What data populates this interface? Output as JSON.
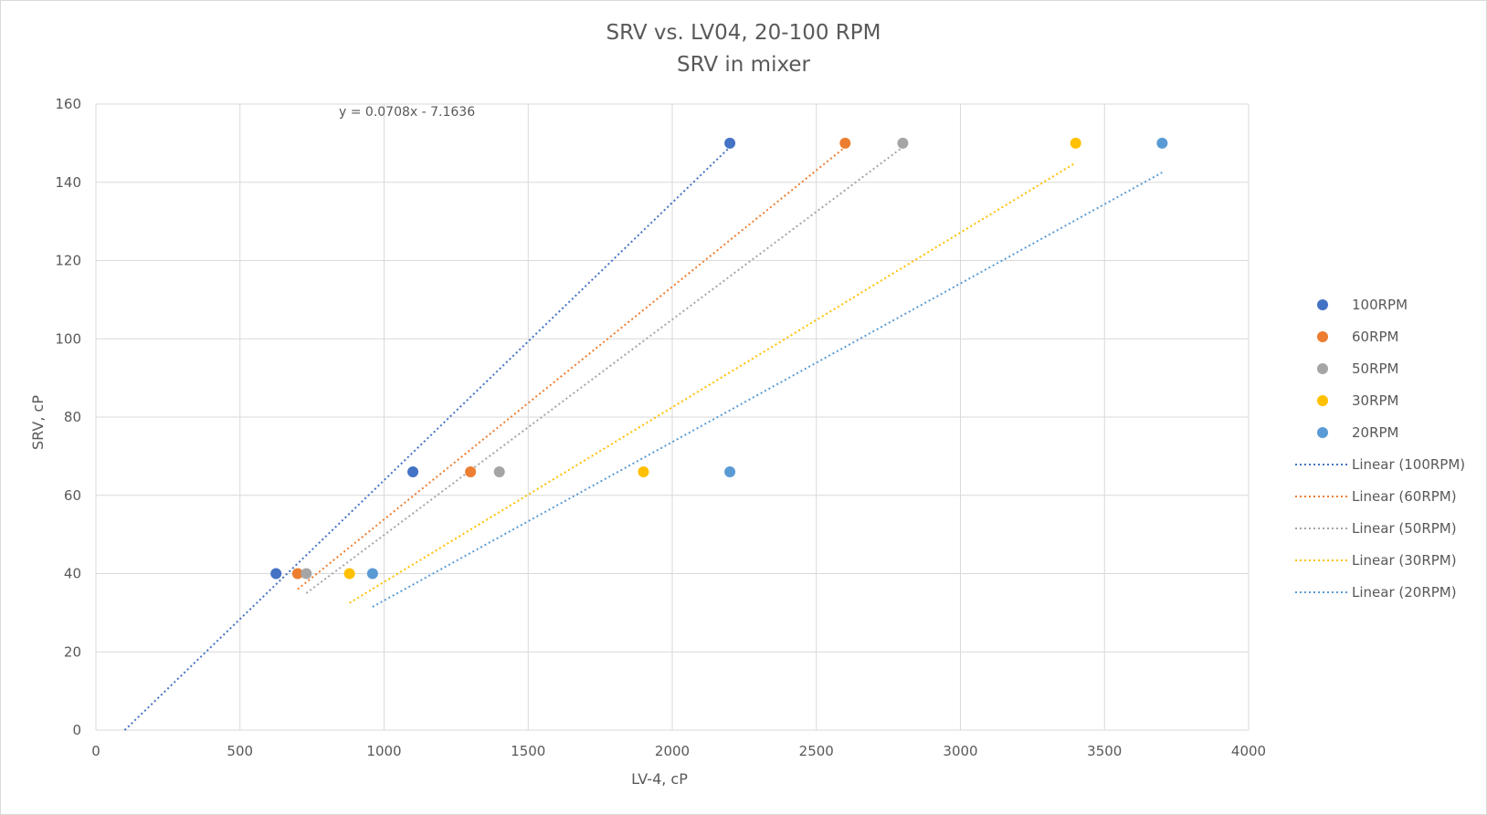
{
  "chart_data": {
    "type": "scatter",
    "title": "SRV vs. LV04, 20-100 RPM",
    "subtitle": "SRV in mixer",
    "xlabel": "LV-4, cP",
    "ylabel": "SRV, cP",
    "xlim": [
      0,
      4000
    ],
    "ylim": [
      0,
      160
    ],
    "x_ticks": [
      0,
      500,
      1000,
      1500,
      2000,
      2500,
      3000,
      3500,
      4000
    ],
    "y_ticks": [
      0,
      20,
      40,
      60,
      80,
      100,
      120,
      140,
      160
    ],
    "grid": true,
    "legend_position": "right",
    "trendline_equation": "y = 0.0708x - 7.1636",
    "series": [
      {
        "name": "100RPM",
        "color": "#4472C4",
        "x": [
          625,
          1100,
          2200
        ],
        "y": [
          40,
          66,
          150
        ],
        "trend": {
          "name": "Linear (100RPM)",
          "x": [
            100,
            2200
          ],
          "y": [
            0,
            149
          ]
        }
      },
      {
        "name": "60RPM",
        "color": "#ED7D31",
        "x": [
          700,
          1300,
          2600
        ],
        "y": [
          40,
          66,
          150
        ],
        "trend": {
          "name": "Linear (60RPM)",
          "x": [
            700,
            2600
          ],
          "y": [
            36,
            149
          ]
        }
      },
      {
        "name": "50RPM",
        "color": "#A5A5A5",
        "x": [
          730,
          1400,
          2800
        ],
        "y": [
          40,
          66,
          150
        ],
        "trend": {
          "name": "Linear (50RPM)",
          "x": [
            730,
            2800
          ],
          "y": [
            35,
            149
          ]
        }
      },
      {
        "name": "30RPM",
        "color": "#FFC000",
        "x": [
          880,
          1900,
          3400
        ],
        "y": [
          40,
          66,
          150
        ],
        "trend": {
          "name": "Linear (30RPM)",
          "x": [
            880,
            3400
          ],
          "y": [
            32.5,
            145
          ]
        }
      },
      {
        "name": "20RPM",
        "color": "#5B9BD5",
        "x": [
          960,
          2200,
          3700
        ],
        "y": [
          40,
          66,
          150
        ],
        "trend": {
          "name": "Linear (20RPM)",
          "x": [
            960,
            3700
          ],
          "y": [
            31.5,
            142.5
          ]
        }
      }
    ]
  }
}
